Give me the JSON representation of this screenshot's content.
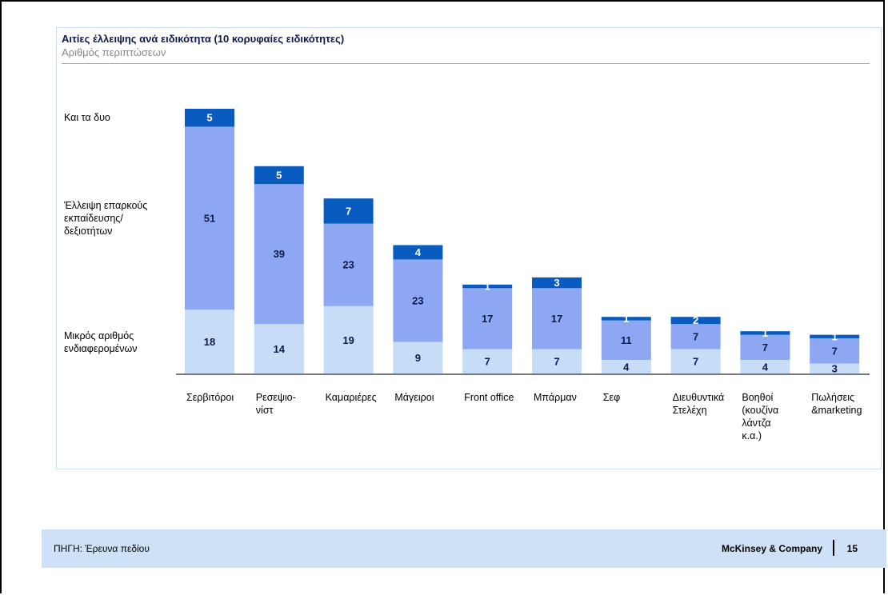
{
  "chart_data": {
    "type": "stacked_bar",
    "title": "Αιτίες έλλειψης ανά ειδικότητα (10 κορυφαίες ειδικότητες)",
    "subtitle": "Αριθμός περιπτώσεων",
    "categories": [
      "Σερβιτόροι",
      "Ρεσεψιο-\nνίστ",
      "Καμαριέρες",
      "Μάγειροι",
      "Front office",
      "Μπάρμαν",
      "Σεφ",
      "Διευθυντικά\nΣτελέχη",
      "Βοηθοί\n(κουζίνα\nλάντζα\nκ.α.)",
      "Πωλήσεις\n&marketing"
    ],
    "series": [
      {
        "name": "Μικρός αριθμός\nενδιαφερομένων",
        "color": "#c6dcf7",
        "values": [
          18,
          14,
          19,
          9,
          7,
          7,
          4,
          7,
          4,
          3
        ]
      },
      {
        "name": "Έλλειψη επαρκούς\nεκπαίδευσης/\nδεξιοτήτων",
        "color": "#8ea7f3",
        "values": [
          51,
          39,
          23,
          23,
          17,
          17,
          11,
          7,
          7,
          7
        ]
      },
      {
        "name": "Και τα δυο",
        "color": "#0a5bbf",
        "values": [
          5,
          5,
          7,
          4,
          1,
          3,
          1,
          2,
          1,
          1
        ]
      }
    ]
  },
  "footer": {
    "source": "ΠΗΓΗ: Έρευνα πεδίου",
    "company": "McKinsey & Company",
    "page": "15"
  }
}
